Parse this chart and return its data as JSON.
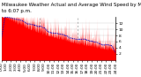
{
  "title1": "Milwaukee Weather Actual and Average Wind Speed by Minute mph (Last 24 Hours)",
  "title2": "to 6:07 p.m.",
  "background_color": "#ffffff",
  "plot_background": "#ffffff",
  "num_points": 1440,
  "y_max": 14,
  "y_min": 0,
  "ytick_values": [
    2,
    4,
    6,
    8,
    10,
    12
  ],
  "actual_color": "#ff0000",
  "average_color": "#0000bb",
  "grid_color": "#999999",
  "title_fontsize": 4.0,
  "tick_fontsize": 3.2,
  "num_vgrid_lines": 2,
  "seed": 42
}
